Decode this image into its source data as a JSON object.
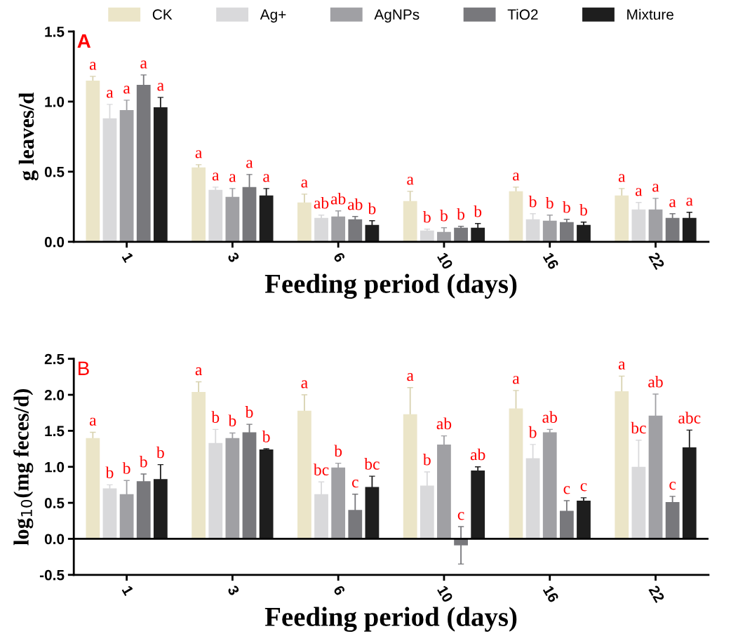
{
  "chart_data": [
    {
      "type": "bar",
      "title": "A",
      "xlabel": "Feeding period (days)",
      "ylabel": "g leaves/d",
      "categories": [
        "1",
        "3",
        "6",
        "10",
        "16",
        "22"
      ],
      "ylim": [
        0,
        1.5
      ],
      "yticks": [
        {
          "value": 0,
          "label": "0.0"
        },
        0.5,
        {
          "value": 1,
          "label": "1.0"
        },
        1.5
      ],
      "legend": "top",
      "grid": false,
      "series": [
        {
          "name": "CK",
          "color": "#ebe5c8",
          "values": [
            1.15,
            0.53,
            0.28,
            0.29,
            0.36,
            0.33
          ],
          "errors": [
            0.03,
            0.02,
            0.06,
            0.07,
            0.03,
            0.05
          ],
          "value_labels": [
            "a",
            "a",
            "a",
            "a",
            "a",
            "a"
          ]
        },
        {
          "name": "Ag+",
          "color": "#d9d9db",
          "values": [
            0.88,
            0.37,
            0.17,
            0.08,
            0.16,
            0.23
          ],
          "errors": [
            0.1,
            0.02,
            0.02,
            0.01,
            0.04,
            0.05
          ],
          "value_labels": [
            "a",
            "a",
            "ab",
            "b",
            "b",
            "a"
          ]
        },
        {
          "name": "AgNPs",
          "color": "#a0a0a4",
          "values": [
            0.94,
            0.32,
            0.18,
            0.07,
            0.15,
            0.23
          ],
          "errors": [
            0.07,
            0.06,
            0.04,
            0.03,
            0.04,
            0.08
          ],
          "value_labels": [
            "a",
            "a",
            "ab",
            "b",
            "b",
            "a"
          ]
        },
        {
          "name": "TiO2",
          "color": "#78787c",
          "values": [
            1.12,
            0.39,
            0.16,
            0.1,
            0.14,
            0.17
          ],
          "errors": [
            0.07,
            0.09,
            0.02,
            0.01,
            0.02,
            0.03
          ],
          "value_labels": [
            "a",
            "a",
            "ab",
            "b",
            "b",
            "a"
          ]
        },
        {
          "name": "Mixture",
          "color": "#1e1e1e",
          "values": [
            0.96,
            0.33,
            0.12,
            0.1,
            0.12,
            0.17
          ],
          "errors": [
            0.07,
            0.05,
            0.03,
            0.03,
            0.02,
            0.04
          ],
          "value_labels": [
            "a",
            "a",
            "b",
            "b",
            "b",
            "a"
          ]
        }
      ]
    },
    {
      "type": "bar",
      "title": "B",
      "xlabel": "Feeding period (days)",
      "ylabel": "log$_{10}$(mg feces/d)",
      "categories": [
        "1",
        "3",
        "6",
        "10",
        "16",
        "22"
      ],
      "ylim": [
        -0.5,
        2.5
      ],
      "yticks": [
        -0.5,
        {
          "value": 0,
          "label": "0.0"
        },
        0.5,
        {
          "value": 1,
          "label": "1.0"
        },
        1.5,
        {
          "value": 2,
          "label": "2.0"
        },
        2.5
      ],
      "grid": false,
      "ref_lines": [
        {
          "axis": "y",
          "value": 0,
          "color": "#000000"
        }
      ],
      "series": [
        {
          "color": "#ebe5c8",
          "values": [
            1.4,
            2.04,
            1.78,
            1.73,
            1.81,
            2.05
          ],
          "errors": [
            0.08,
            0.14,
            0.22,
            0.37,
            0.25,
            0.21
          ],
          "value_labels": [
            "a",
            "a",
            "a",
            "a",
            "a",
            "a"
          ]
        },
        {
          "color": "#d9d9db",
          "values": [
            0.7,
            1.33,
            0.62,
            0.74,
            1.12,
            1.0
          ],
          "errors": [
            0.05,
            0.19,
            0.17,
            0.19,
            0.19,
            0.37
          ],
          "value_labels": [
            "b",
            "b",
            "bc",
            "b",
            "b",
            "bc"
          ]
        },
        {
          "color": "#a0a0a4",
          "values": [
            0.62,
            1.4,
            0.99,
            1.31,
            1.48,
            1.71
          ],
          "errors": [
            0.19,
            0.07,
            0.06,
            0.12,
            0.04,
            0.3
          ],
          "value_labels": [
            "b",
            "b",
            "b",
            "ab",
            "ab",
            "ab"
          ]
        },
        {
          "color": "#78787c",
          "values": [
            0.8,
            1.48,
            0.4,
            -0.09,
            0.39,
            0.51
          ],
          "errors": [
            0.1,
            0.11,
            0.22,
            0.26,
            0.14,
            0.08
          ],
          "value_labels": [
            "b",
            "b",
            "c",
            "c",
            "c",
            "c"
          ]
        },
        {
          "color": "#1e1e1e",
          "values": [
            0.83,
            1.24,
            0.72,
            0.95,
            0.53,
            1.27
          ],
          "errors": [
            0.2,
            0.01,
            0.15,
            0.05,
            0.04,
            0.24
          ],
          "value_labels": [
            "b",
            "b",
            "bc",
            "ab",
            "c",
            "abc"
          ]
        }
      ]
    }
  ]
}
